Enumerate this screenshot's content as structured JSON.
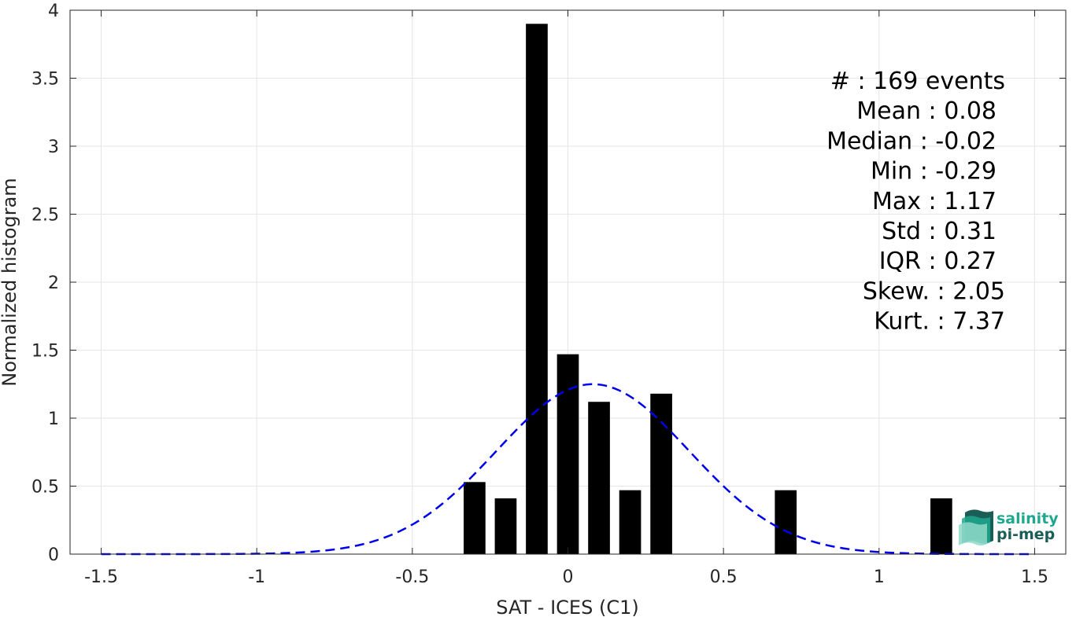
{
  "chart_data": {
    "type": "bar",
    "title": "",
    "xlabel": "SAT - ICES (C1)",
    "ylabel": "Normalized histogram",
    "xlim": [
      -1.6,
      1.6
    ],
    "ylim": [
      0,
      4
    ],
    "x_ticks": [
      "-1.5",
      "-1",
      "-0.5",
      "0",
      "0.5",
      "1",
      "1.5"
    ],
    "x_tick_values": [
      -1.5,
      -1,
      -0.5,
      0,
      0.5,
      1,
      1.5
    ],
    "y_ticks": [
      "0",
      "0.5",
      "1",
      "1.5",
      "2",
      "2.5",
      "3",
      "3.5",
      "4"
    ],
    "y_tick_values": [
      0,
      0.5,
      1,
      1.5,
      2,
      2.5,
      3,
      3.5,
      4
    ],
    "grid": true,
    "bar_width": 0.07,
    "bar_color": "#000000",
    "bars": [
      {
        "x": -0.3,
        "value": 0.53
      },
      {
        "x": -0.2,
        "value": 0.41
      },
      {
        "x": -0.1,
        "value": 3.9
      },
      {
        "x": 0.0,
        "value": 1.47
      },
      {
        "x": 0.1,
        "value": 1.12
      },
      {
        "x": 0.2,
        "value": 0.47
      },
      {
        "x": 0.3,
        "value": 1.18
      },
      {
        "x": 0.7,
        "value": 0.47
      },
      {
        "x": 1.2,
        "value": 0.41
      }
    ],
    "fit_curve": {
      "style": "dashed",
      "color": "#0000ee",
      "mean": 0.08,
      "std": 0.31,
      "peak": 1.25,
      "x_range": [
        -1.5,
        1.5
      ]
    }
  },
  "stats": [
    {
      "label": "#  : 169 events",
      "anchor": "end",
      "col": "wide"
    },
    {
      "label": "Mean : 0.08",
      "anchor": "end",
      "col": "narrow"
    },
    {
      "label": "Median : -0.02",
      "anchor": "end",
      "col": "narrow"
    },
    {
      "label": "Min : -0.29",
      "anchor": "end",
      "col": "narrow"
    },
    {
      "label": "Max : 1.17",
      "anchor": "end",
      "col": "narrow"
    },
    {
      "label": "Std : 0.31",
      "anchor": "end",
      "col": "narrow"
    },
    {
      "label": "IQR : 0.27",
      "anchor": "end",
      "col": "narrow"
    },
    {
      "label": "Skew. : 2.05",
      "anchor": "end",
      "col": "wide"
    },
    {
      "label": "Kurt. : 7.37",
      "anchor": "end",
      "col": "wide"
    }
  ],
  "logo": {
    "line1": "salinity",
    "line2": "pi-mep",
    "color1": "#1fa88e",
    "color2": "#1a5e57"
  }
}
